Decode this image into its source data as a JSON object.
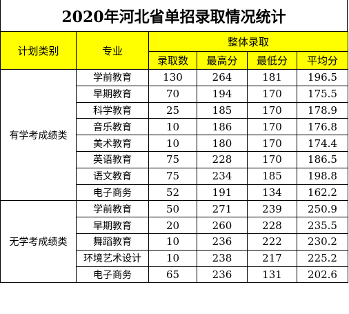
{
  "title": "2020年河北省单招录取情况统计",
  "headers": {
    "category": "计划类别",
    "major": "专业",
    "group": "整体录取",
    "admitted": "录取数",
    "max": "最高分",
    "min": "最低分",
    "avg": "平均分"
  },
  "categories": [
    {
      "name": "有学考成绩类",
      "rows": [
        {
          "major": "学前教育",
          "admitted": "130",
          "max": "264",
          "min": "181",
          "avg": "196.5"
        },
        {
          "major": "早期教育",
          "admitted": "70",
          "max": "194",
          "min": "170",
          "avg": "175.5"
        },
        {
          "major": "科学教育",
          "admitted": "25",
          "max": "185",
          "min": "170",
          "avg": "178.9"
        },
        {
          "major": "音乐教育",
          "admitted": "10",
          "max": "186",
          "min": "170",
          "avg": "176.8"
        },
        {
          "major": "美术教育",
          "admitted": "10",
          "max": "180",
          "min": "170",
          "avg": "174.4"
        },
        {
          "major": "英语教育",
          "admitted": "75",
          "max": "228",
          "min": "170",
          "avg": "186.5"
        },
        {
          "major": "语文教育",
          "admitted": "75",
          "max": "234",
          "min": "185",
          "avg": "198.8"
        },
        {
          "major": "电子商务",
          "admitted": "52",
          "max": "191",
          "min": "134",
          "avg": "162.2"
        }
      ]
    },
    {
      "name": "无学考成绩类",
      "rows": [
        {
          "major": "学前教育",
          "admitted": "50",
          "max": "271",
          "min": "239",
          "avg": "250.9"
        },
        {
          "major": "早期教育",
          "admitted": "20",
          "max": "260",
          "min": "228",
          "avg": "235.5"
        },
        {
          "major": "舞蹈教育",
          "admitted": "10",
          "max": "236",
          "min": "222",
          "avg": "230.2"
        },
        {
          "major": "环境艺术设计",
          "admitted": "10",
          "max": "238",
          "min": "217",
          "avg": "225.2"
        },
        {
          "major": "电子商务",
          "admitted": "65",
          "max": "236",
          "min": "131",
          "avg": "202.6"
        }
      ]
    }
  ]
}
